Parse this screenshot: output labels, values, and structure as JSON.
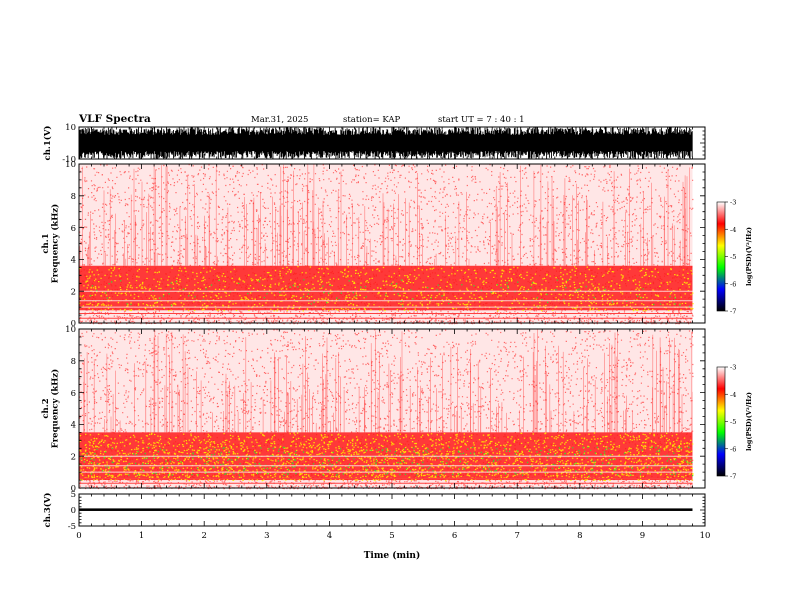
{
  "header": {
    "title": "VLF Spectra",
    "date": "Mar.31, 2025",
    "station": "station= KAP",
    "start_ut": "start  UT  =   7 : 40 : 1"
  },
  "colors": {
    "background": "#ffffff",
    "trace": "#000000",
    "colormap": [
      "#ffffff",
      "#ff0000",
      "#ffff00",
      "#00ff00",
      "#0000ff",
      "#000000"
    ]
  },
  "chart_data": [
    {
      "type": "line",
      "panel": "ch1-waveform",
      "ylabel": "ch.1(V)",
      "ylim": [
        -10,
        10
      ],
      "yticks": [
        "10",
        "-10"
      ],
      "xlim": [
        0,
        10
      ],
      "envelope": {
        "min": -10,
        "max": 10
      }
    },
    {
      "type": "heatmap",
      "panel": "ch1-spectrogram",
      "ylabel": "ch.1\nFrequency  (kHz)",
      "ylabel_lines": [
        "ch.1",
        "Frequency  (kHz)"
      ],
      "ylim": [
        0,
        10
      ],
      "yticks": [
        "0",
        "2",
        "4",
        "6",
        "8",
        "10"
      ],
      "xlim": [
        0,
        10
      ],
      "data_end_min": 9.8,
      "bands": [
        {
          "from_khz": 0.8,
          "to_khz": 3.6,
          "level": "high"
        },
        {
          "from_khz": 3.6,
          "to_khz": 10,
          "level": "low"
        }
      ],
      "colorbar": {
        "label": "log(PSD)(V²/Hz)",
        "range": [
          -7,
          -3
        ],
        "ticks": [
          "-3",
          "-4",
          "-5",
          "-6",
          "-7"
        ]
      }
    },
    {
      "type": "heatmap",
      "panel": "ch2-spectrogram",
      "ylabel": "ch.2\nFrequency  (kHz)",
      "ylabel_lines": [
        "ch.2",
        "Frequency  (kHz)"
      ],
      "ylim": [
        0,
        10
      ],
      "yticks": [
        "0",
        "2",
        "4",
        "6",
        "8",
        "10"
      ],
      "xlim": [
        0,
        10
      ],
      "data_end_min": 9.8,
      "bands": [
        {
          "from_khz": 0.5,
          "to_khz": 3.5,
          "level": "high"
        },
        {
          "from_khz": 3.5,
          "to_khz": 10,
          "level": "low"
        }
      ],
      "colorbar": {
        "label": "log(PSD)(V²/Hz)",
        "range": [
          -7,
          -3
        ],
        "ticks": [
          "-3",
          "-4",
          "-5",
          "-6",
          "-7"
        ]
      }
    },
    {
      "type": "line",
      "panel": "ch3-waveform",
      "ylabel": "ch.3(V)",
      "ylim": [
        -5,
        5
      ],
      "yticks": [
        "5",
        "0",
        "-5"
      ],
      "xlim": [
        0,
        10
      ],
      "envelope": {
        "min": -0.3,
        "max": 0.5
      }
    }
  ],
  "xaxis": {
    "label": "Time  (min)",
    "ticks": [
      "0",
      "1",
      "2",
      "3",
      "4",
      "5",
      "6",
      "7",
      "8",
      "9",
      "10"
    ]
  }
}
